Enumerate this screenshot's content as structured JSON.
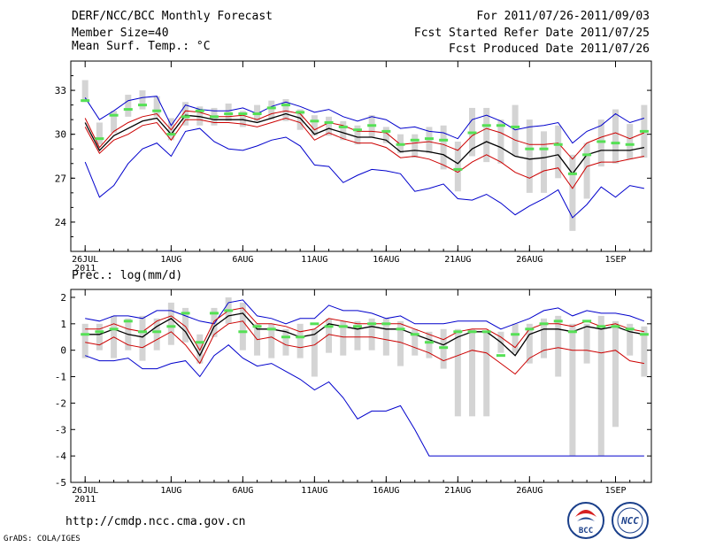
{
  "header": {
    "title_left": "DERF/NCC/BCC Monthly Forecast",
    "member_size": "Member Size=40",
    "title_right": "For 2011/07/26-2011/09/03",
    "fcst_started": "Fcst Started Refer Date 2011/07/25",
    "fcst_produced": "Fcst Produced Date 2011/07/26"
  },
  "footer": {
    "url": "http://cmdp.ncc.cma.gov.cn",
    "grads_credit": "GrADS: COLA/IGES",
    "logo_bcc": "BCC",
    "logo_ncc": "NCC"
  },
  "colors": {
    "mean": "#000000",
    "spread_red": "#cc0000",
    "extreme_blue": "#0000cc",
    "ensemble_bar": "#d4d4d4",
    "observed_green": "#55e055",
    "frame": "#000000"
  },
  "chart_data": [
    {
      "type": "line",
      "title": "Mean Surf. Temp.: °C",
      "ylim": [
        22,
        35
      ],
      "yticks": [
        24,
        27,
        30,
        33
      ],
      "xticks": [
        {
          "day": 0,
          "label": "26JUL",
          "sublabel": "2011"
        },
        {
          "day": 6,
          "label": "1AUG"
        },
        {
          "day": 11,
          "label": "6AUG"
        },
        {
          "day": 16,
          "label": "11AUG"
        },
        {
          "day": 21,
          "label": "16AUG"
        },
        {
          "day": 26,
          "label": "21AUG"
        },
        {
          "day": 31,
          "label": "26AUG"
        },
        {
          "day": 37,
          "label": "1SEP"
        }
      ],
      "xlim": [
        -1,
        39.5
      ],
      "days": [
        0,
        1,
        2,
        3,
        4,
        5,
        6,
        7,
        8,
        9,
        10,
        11,
        12,
        13,
        14,
        15,
        16,
        17,
        18,
        19,
        20,
        21,
        22,
        23,
        24,
        25,
        26,
        27,
        28,
        29,
        30,
        31,
        32,
        33,
        34,
        35,
        36,
        37,
        38,
        39
      ],
      "series": [
        {
          "name": "max",
          "values": [
            32.5,
            31.0,
            31.6,
            32.3,
            32.5,
            32.6,
            30.6,
            32.0,
            31.7,
            31.6,
            31.6,
            31.8,
            31.4,
            31.9,
            32.2,
            31.9,
            31.5,
            31.7,
            31.2,
            30.9,
            31.2,
            31.0,
            30.4,
            30.5,
            30.2,
            30.1,
            29.7,
            31.0,
            31.3,
            30.9,
            30.3,
            30.5,
            30.6,
            30.8,
            29.4,
            30.2,
            30.6,
            31.4,
            30.8,
            31.1
          ]
        },
        {
          "name": "upper",
          "values": [
            31.1,
            29.1,
            30.2,
            30.8,
            31.2,
            31.4,
            30.3,
            31.6,
            31.5,
            31.2,
            31.2,
            31.3,
            31.0,
            31.4,
            31.6,
            31.4,
            30.3,
            30.8,
            30.6,
            30.2,
            30.2,
            30.1,
            29.3,
            29.4,
            29.5,
            29.3,
            28.9,
            29.9,
            30.4,
            30.1,
            29.6,
            29.3,
            29.3,
            29.4,
            28.3,
            29.4,
            29.8,
            30.1,
            29.7,
            30.1
          ]
        },
        {
          "name": "mean",
          "values": [
            30.8,
            28.9,
            29.9,
            30.4,
            30.9,
            31.1,
            30.0,
            31.3,
            31.2,
            31.0,
            31.0,
            31.0,
            30.8,
            31.1,
            31.4,
            31.1,
            30.0,
            30.4,
            30.1,
            29.8,
            29.8,
            29.6,
            28.8,
            28.9,
            28.8,
            28.6,
            28.0,
            29.0,
            29.5,
            29.1,
            28.5,
            28.3,
            28.4,
            28.6,
            27.3,
            28.6,
            28.9,
            28.9,
            28.9,
            29.1
          ]
        },
        {
          "name": "lower",
          "values": [
            30.5,
            28.7,
            29.6,
            30.0,
            30.6,
            30.8,
            29.6,
            31.0,
            31.0,
            30.8,
            30.8,
            30.7,
            30.5,
            30.8,
            31.1,
            30.8,
            29.6,
            30.1,
            29.7,
            29.4,
            29.4,
            29.1,
            28.4,
            28.5,
            28.3,
            27.9,
            27.4,
            28.1,
            28.6,
            28.1,
            27.4,
            27.0,
            27.5,
            27.7,
            26.3,
            27.8,
            28.1,
            28.1,
            28.3,
            28.5
          ]
        },
        {
          "name": "min",
          "values": [
            28.1,
            25.7,
            26.5,
            28.0,
            29.0,
            29.4,
            28.5,
            30.2,
            30.4,
            29.5,
            29.0,
            28.9,
            29.2,
            29.6,
            29.8,
            29.2,
            27.9,
            27.8,
            26.7,
            27.2,
            27.6,
            27.5,
            27.3,
            26.1,
            26.3,
            26.6,
            25.6,
            25.5,
            25.9,
            25.3,
            24.5,
            25.1,
            25.6,
            26.2,
            24.3,
            25.2,
            26.4,
            25.7,
            26.5,
            26.3
          ]
        }
      ],
      "ensemble_bars": [
        [
          32.2,
          33.7
        ],
        [
          29.3,
          30.8
        ],
        [
          30.1,
          31.6
        ],
        [
          31.2,
          32.7
        ],
        [
          31.7,
          33.0
        ],
        [
          31.2,
          32.6
        ],
        [
          29.6,
          31.1
        ],
        [
          30.6,
          32.2
        ],
        [
          30.6,
          31.9
        ],
        [
          30.6,
          31.8
        ],
        [
          30.9,
          32.1
        ],
        [
          30.5,
          31.6
        ],
        [
          30.8,
          32.0
        ],
        [
          31.0,
          32.3
        ],
        [
          30.9,
          32.4
        ],
        [
          30.3,
          31.7
        ],
        [
          29.9,
          31.3
        ],
        [
          29.9,
          31.2
        ],
        [
          29.6,
          30.9
        ],
        [
          29.3,
          30.6
        ],
        [
          29.8,
          31.3
        ],
        [
          29.4,
          30.5
        ],
        [
          28.7,
          30.0
        ],
        [
          28.4,
          30.0
        ],
        [
          28.7,
          30.5
        ],
        [
          27.6,
          30.6
        ],
        [
          26.1,
          29.5
        ],
        [
          28.5,
          31.8
        ],
        [
          28.1,
          31.8
        ],
        [
          28.0,
          31.0
        ],
        [
          28.5,
          32.0
        ],
        [
          26.0,
          31.0
        ],
        [
          26.0,
          30.2
        ],
        [
          27.0,
          30.6
        ],
        [
          23.4,
          28.6
        ],
        [
          25.6,
          29.4
        ],
        [
          27.8,
          31.0
        ],
        [
          28.0,
          31.7
        ],
        [
          28.3,
          30.7
        ],
        [
          28.4,
          32.0
        ]
      ],
      "observed": [
        32.3,
        29.7,
        31.3,
        31.7,
        32.0,
        31.6,
        30.0,
        31.2,
        31.6,
        31.2,
        31.4,
        31.4,
        31.4,
        31.8,
        32.0,
        31.5,
        30.9,
        30.8,
        30.5,
        30.3,
        30.6,
        30.2,
        29.3,
        29.6,
        29.7,
        29.6,
        27.6,
        30.1,
        30.6,
        30.6,
        30.5,
        29.0,
        29.0,
        29.3,
        27.3,
        28.6,
        29.5,
        29.4,
        29.3,
        30.2
      ]
    },
    {
      "type": "line",
      "title": "Prec.: log(mm/d)",
      "ylim": [
        -5,
        2.3
      ],
      "yticks": [
        -5,
        -4,
        -3,
        -2,
        -1,
        0,
        1,
        2
      ],
      "xticks": [
        {
          "day": 0,
          "label": "26JUL",
          "sublabel": "2011"
        },
        {
          "day": 6,
          "label": "1AUG"
        },
        {
          "day": 11,
          "label": "6AUG"
        },
        {
          "day": 16,
          "label": "11AUG"
        },
        {
          "day": 21,
          "label": "16AUG"
        },
        {
          "day": 26,
          "label": "21AUG"
        },
        {
          "day": 31,
          "label": "26AUG"
        },
        {
          "day": 37,
          "label": "1SEP"
        }
      ],
      "xlim": [
        -1,
        39.5
      ],
      "days": [
        0,
        1,
        2,
        3,
        4,
        5,
        6,
        7,
        8,
        9,
        10,
        11,
        12,
        13,
        14,
        15,
        16,
        17,
        18,
        19,
        20,
        21,
        22,
        23,
        24,
        25,
        26,
        27,
        28,
        29,
        30,
        31,
        32,
        33,
        34,
        35,
        36,
        37,
        38,
        39
      ],
      "series": [
        {
          "name": "max",
          "values": [
            1.2,
            1.1,
            1.3,
            1.3,
            1.2,
            1.5,
            1.5,
            1.3,
            1.1,
            1.0,
            1.8,
            1.9,
            1.3,
            1.2,
            1.0,
            1.2,
            1.2,
            1.7,
            1.5,
            1.5,
            1.4,
            1.2,
            1.3,
            1.0,
            1.0,
            1.0,
            1.1,
            1.1,
            1.1,
            0.8,
            1.0,
            1.2,
            1.5,
            1.6,
            1.3,
            1.5,
            1.4,
            1.4,
            1.3,
            1.1
          ]
        },
        {
          "name": "upper",
          "values": [
            0.8,
            0.8,
            1.0,
            0.8,
            0.7,
            1.1,
            1.3,
            0.9,
            0.0,
            1.1,
            1.5,
            1.6,
            1.0,
            1.0,
            0.9,
            0.7,
            0.8,
            1.2,
            1.1,
            1.0,
            1.0,
            1.0,
            1.0,
            0.8,
            0.6,
            0.4,
            0.7,
            0.8,
            0.8,
            0.5,
            0.1,
            0.8,
            1.0,
            1.0,
            0.9,
            1.1,
            0.9,
            1.0,
            0.8,
            0.7
          ]
        },
        {
          "name": "mean",
          "values": [
            0.6,
            0.6,
            0.8,
            0.6,
            0.5,
            0.9,
            1.2,
            0.7,
            -0.2,
            0.9,
            1.3,
            1.4,
            0.8,
            0.8,
            0.7,
            0.5,
            0.6,
            1.0,
            0.9,
            0.8,
            0.9,
            0.8,
            0.8,
            0.6,
            0.4,
            0.2,
            0.5,
            0.7,
            0.7,
            0.3,
            -0.2,
            0.6,
            0.8,
            0.8,
            0.7,
            0.9,
            0.8,
            0.9,
            0.7,
            0.6
          ]
        },
        {
          "name": "lower",
          "values": [
            0.3,
            0.2,
            0.5,
            0.2,
            0.1,
            0.4,
            0.7,
            0.2,
            -0.5,
            0.6,
            1.0,
            1.1,
            0.4,
            0.5,
            0.2,
            0.1,
            0.2,
            0.6,
            0.5,
            0.5,
            0.5,
            0.4,
            0.3,
            0.1,
            -0.1,
            -0.4,
            -0.2,
            0.0,
            -0.1,
            -0.5,
            -0.9,
            -0.3,
            0.0,
            0.1,
            0.0,
            0.0,
            -0.1,
            0.0,
            -0.4,
            -0.5
          ]
        },
        {
          "name": "min",
          "values": [
            -0.2,
            -0.4,
            -0.4,
            -0.3,
            -0.7,
            -0.7,
            -0.5,
            -0.4,
            -1.0,
            -0.2,
            0.2,
            -0.3,
            -0.6,
            -0.5,
            -0.8,
            -1.1,
            -1.5,
            -1.2,
            -1.8,
            -2.6,
            -2.3,
            -2.3,
            -2.1,
            -3.0,
            -4.0,
            -4.0,
            -4.0,
            -4.0,
            -4.0,
            -4.0,
            -4.0,
            -4.0,
            -4.0,
            -4.0,
            -4.0,
            -4.0,
            -4.0,
            -4.0,
            -4.0,
            -4.0
          ]
        }
      ],
      "ensemble_bars": [
        [
          -0.3,
          1.0
        ],
        [
          0.0,
          1.0
        ],
        [
          -0.3,
          1.3
        ],
        [
          0.0,
          1.2
        ],
        [
          -0.4,
          1.3
        ],
        [
          0.0,
          1.2
        ],
        [
          0.2,
          1.8
        ],
        [
          0.3,
          1.6
        ],
        [
          -0.5,
          0.6
        ],
        [
          0.5,
          1.6
        ],
        [
          1.0,
          2.0
        ],
        [
          0.0,
          1.8
        ],
        [
          -0.2,
          1.0
        ],
        [
          -0.3,
          1.0
        ],
        [
          -0.2,
          0.8
        ],
        [
          -0.3,
          1.0
        ],
        [
          -1.0,
          0.8
        ],
        [
          -0.1,
          1.2
        ],
        [
          -0.2,
          1.1
        ],
        [
          0.0,
          1.1
        ],
        [
          0.0,
          1.2
        ],
        [
          -0.2,
          1.2
        ],
        [
          -0.6,
          1.1
        ],
        [
          -0.2,
          0.8
        ],
        [
          -0.3,
          0.7
        ],
        [
          -0.7,
          0.8
        ],
        [
          -2.5,
          0.8
        ],
        [
          -2.5,
          0.8
        ],
        [
          -2.5,
          0.7
        ],
        [
          -0.1,
          0.7
        ],
        [
          -0.1,
          1.0
        ],
        [
          -0.5,
          1.0
        ],
        [
          -0.3,
          1.2
        ],
        [
          -1.0,
          1.3
        ],
        [
          -4.0,
          1.0
        ],
        [
          -0.5,
          1.0
        ],
        [
          -4.0,
          1.3
        ],
        [
          -2.9,
          1.1
        ],
        [
          -0.2,
          1.0
        ],
        [
          -1.0,
          0.9
        ]
      ],
      "observed": [
        0.6,
        0.7,
        0.8,
        1.1,
        0.7,
        0.7,
        0.9,
        1.4,
        0.3,
        1.4,
        1.5,
        0.7,
        0.9,
        0.8,
        0.5,
        0.5,
        1.0,
        0.9,
        0.9,
        0.9,
        1.0,
        1.0,
        0.8,
        0.6,
        0.3,
        0.1,
        0.7,
        0.7,
        0.7,
        -0.2,
        0.6,
        0.8,
        1.0,
        1.1,
        0.7,
        1.1,
        0.9,
        0.9,
        0.8,
        0.6
      ]
    }
  ]
}
